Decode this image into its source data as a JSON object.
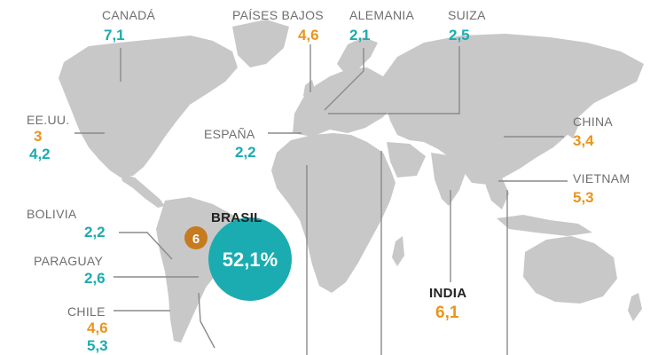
{
  "colors": {
    "land": "#c8c8c8",
    "leader_line": "#8a8a8a",
    "teal": "#1aacb0",
    "orange": "#e8951e",
    "badge": "#c77a1f"
  },
  "labels": {
    "canada": {
      "name": "CANADÁ",
      "v1": "7,1"
    },
    "paises_bajos": {
      "name": "PAÍSES BAJOS",
      "v1": "4,6"
    },
    "alemania": {
      "name": "ALEMANIA",
      "v1": "2,1"
    },
    "suiza": {
      "name": "SUIZA",
      "v1": "2,5"
    },
    "eeuu": {
      "name": "EE.UU.",
      "v1": "3",
      "v2": "4,2"
    },
    "espana": {
      "name": "ESPAÑA",
      "v1": "2,2"
    },
    "china": {
      "name": "CHINA",
      "v1": "3,4"
    },
    "vietnam": {
      "name": "VIETNAM",
      "v1": "5,3"
    },
    "bolivia": {
      "name": "BOLIVIA",
      "v1": "2,2"
    },
    "paraguay": {
      "name": "PARAGUAY",
      "v1": "2,6"
    },
    "chile": {
      "name": "CHILE",
      "v1": "4,6",
      "v2": "5,3"
    },
    "brasil": {
      "name": "BRASIL",
      "v1": "52,1%",
      "badge": "6"
    },
    "india": {
      "name": "INDIA",
      "v1": "6,1"
    }
  }
}
